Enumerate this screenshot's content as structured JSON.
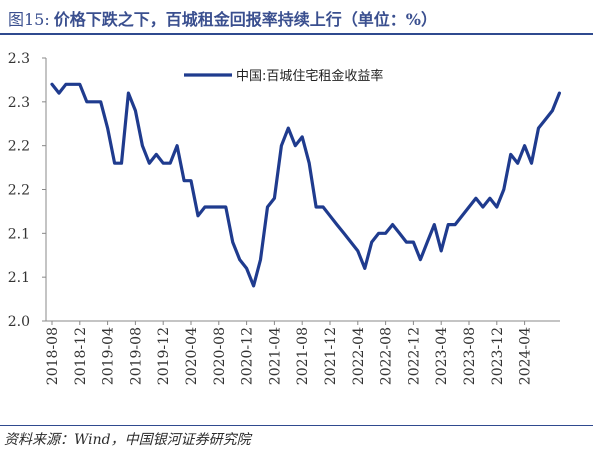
{
  "header": {
    "figure_label": "图15:",
    "title": "价格下跌之下，百城租金回报率持续上行（单位：%）"
  },
  "footer": {
    "source": "资料来源：Wind，中国银河证券研究院"
  },
  "chart_data": {
    "type": "line",
    "ylim": [
      2.0,
      2.3
    ],
    "y_tick_labels": [
      "2.3",
      "2.3",
      "2.2",
      "2.2",
      "2.1",
      "2.1",
      "2.0"
    ],
    "x_tick_labels": [
      "2018-08",
      "2018-12",
      "2019-04",
      "2019-08",
      "2019-12",
      "2020-04",
      "2020-08",
      "2020-12",
      "2021-04",
      "2021-08",
      "2021-12",
      "2022-04",
      "2022-08",
      "2022-12",
      "2023-04",
      "2023-08",
      "2023-12",
      "2024-04"
    ],
    "legend_position": "top-center",
    "grid": false,
    "series": [
      {
        "name": "中国:百城住宅租金收益率",
        "color": "#1f3b8e",
        "values": [
          2.27,
          2.26,
          2.27,
          2.27,
          2.27,
          2.25,
          2.25,
          2.25,
          2.22,
          2.18,
          2.18,
          2.26,
          2.24,
          2.2,
          2.18,
          2.19,
          2.18,
          2.18,
          2.2,
          2.16,
          2.16,
          2.12,
          2.13,
          2.13,
          2.13,
          2.13,
          2.09,
          2.07,
          2.06,
          2.04,
          2.07,
          2.13,
          2.14,
          2.2,
          2.22,
          2.2,
          2.21,
          2.18,
          2.13,
          2.13,
          2.12,
          2.11,
          2.1,
          2.09,
          2.08,
          2.06,
          2.09,
          2.1,
          2.1,
          2.11,
          2.1,
          2.09,
          2.09,
          2.07,
          2.09,
          2.11,
          2.08,
          2.11,
          2.11,
          2.12,
          2.13,
          2.14,
          2.13,
          2.14,
          2.13,
          2.15,
          2.19,
          2.18,
          2.2,
          2.18,
          2.22,
          2.23,
          2.24,
          2.26
        ]
      }
    ]
  }
}
